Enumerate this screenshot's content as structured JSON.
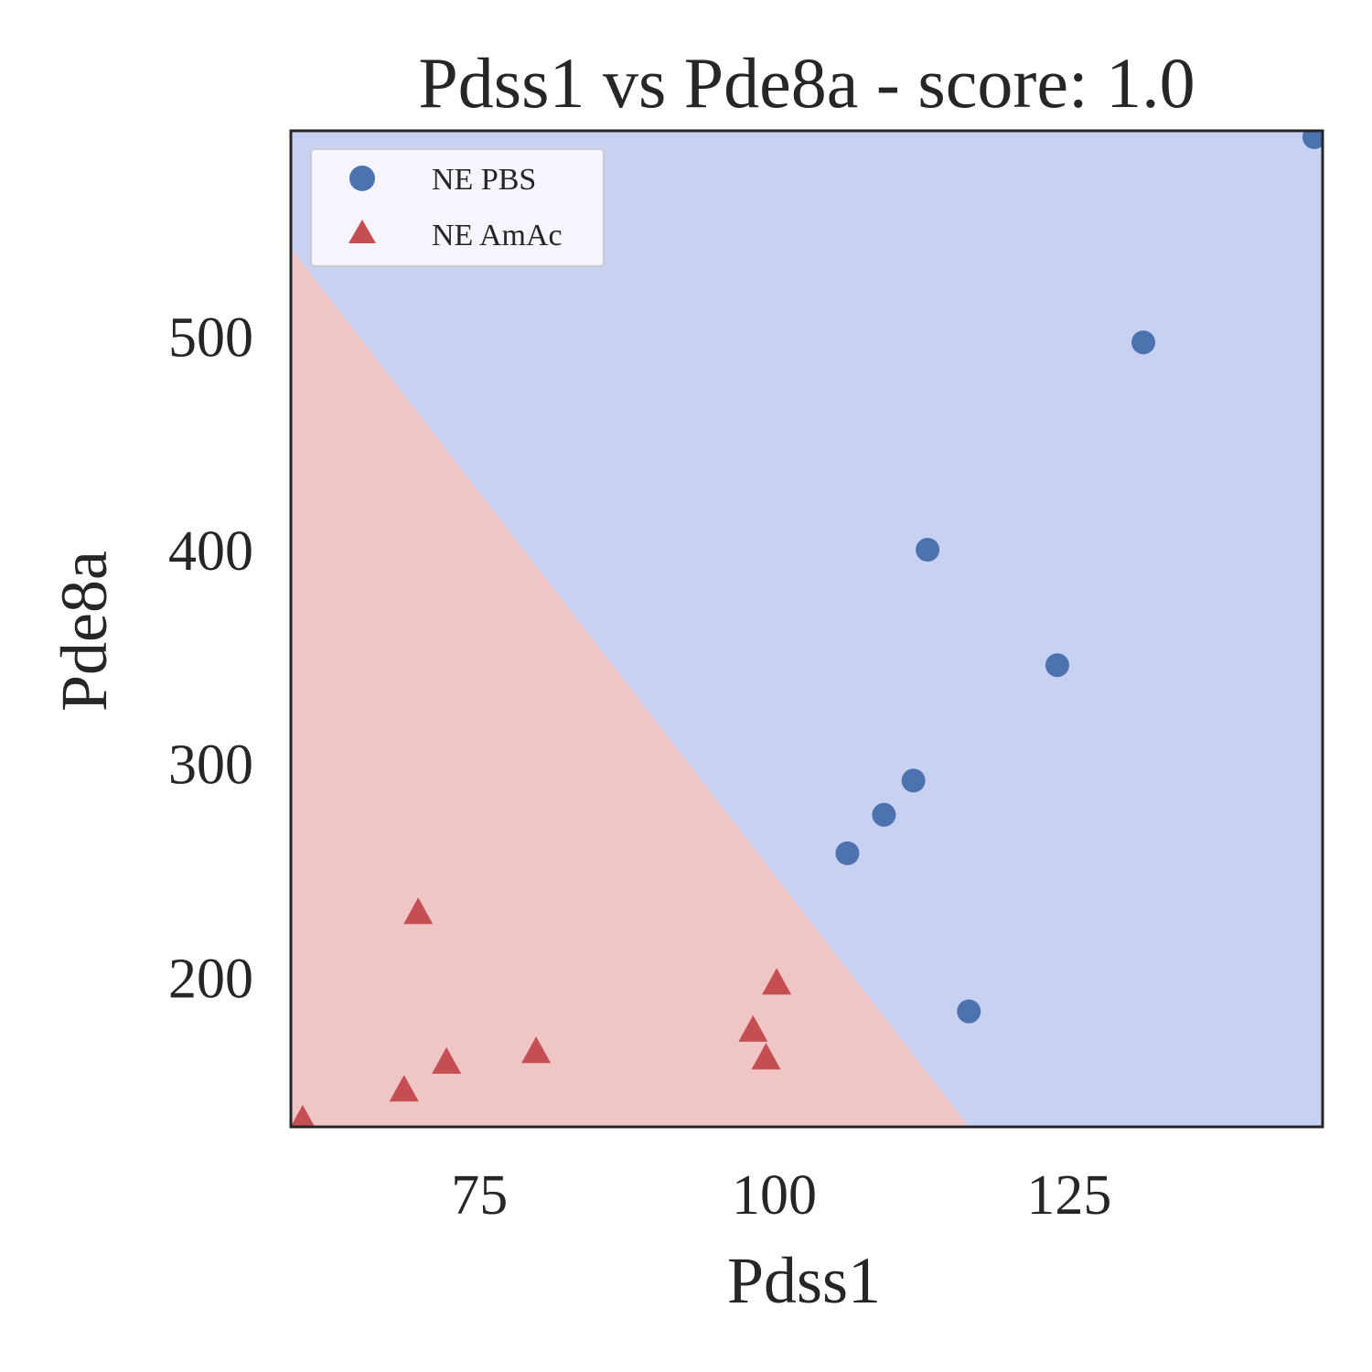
{
  "chart_data": {
    "type": "scatter",
    "title": "Pdss1 vs Pde8a - score: 1.0",
    "xlabel": "Pdss1",
    "ylabel": "Pde8a",
    "xlim": [
      59,
      146.5
    ],
    "ylim": [
      130,
      596
    ],
    "xticks": [
      75,
      100,
      125
    ],
    "yticks": [
      200,
      300,
      400,
      500
    ],
    "grid": false,
    "legend_position": "top-left",
    "decision_boundary": {
      "line": [
        [
          59,
          541
        ],
        [
          116.5,
          130
        ]
      ],
      "lower_left_color": "#efc5c5",
      "upper_right_color": "#c9d1f2"
    },
    "series": [
      {
        "name": "NE PBS",
        "marker": "circle",
        "color": "#4c72b0",
        "points": [
          [
            106.2,
            258
          ],
          [
            109.3,
            276
          ],
          [
            111.8,
            292
          ],
          [
            113,
            400
          ],
          [
            116.5,
            184
          ],
          [
            124,
            346
          ],
          [
            131.3,
            497
          ],
          [
            145.8,
            593
          ]
        ]
      },
      {
        "name": "NE AmAc",
        "marker": "triangle",
        "color": "#c44e52",
        "points": [
          [
            60,
            133
          ],
          [
            68.6,
            147
          ],
          [
            69.8,
            230
          ],
          [
            72.2,
            160
          ],
          [
            79.8,
            165
          ],
          [
            98.2,
            175
          ],
          [
            99.3,
            162
          ],
          [
            100.2,
            197
          ]
        ]
      }
    ]
  }
}
